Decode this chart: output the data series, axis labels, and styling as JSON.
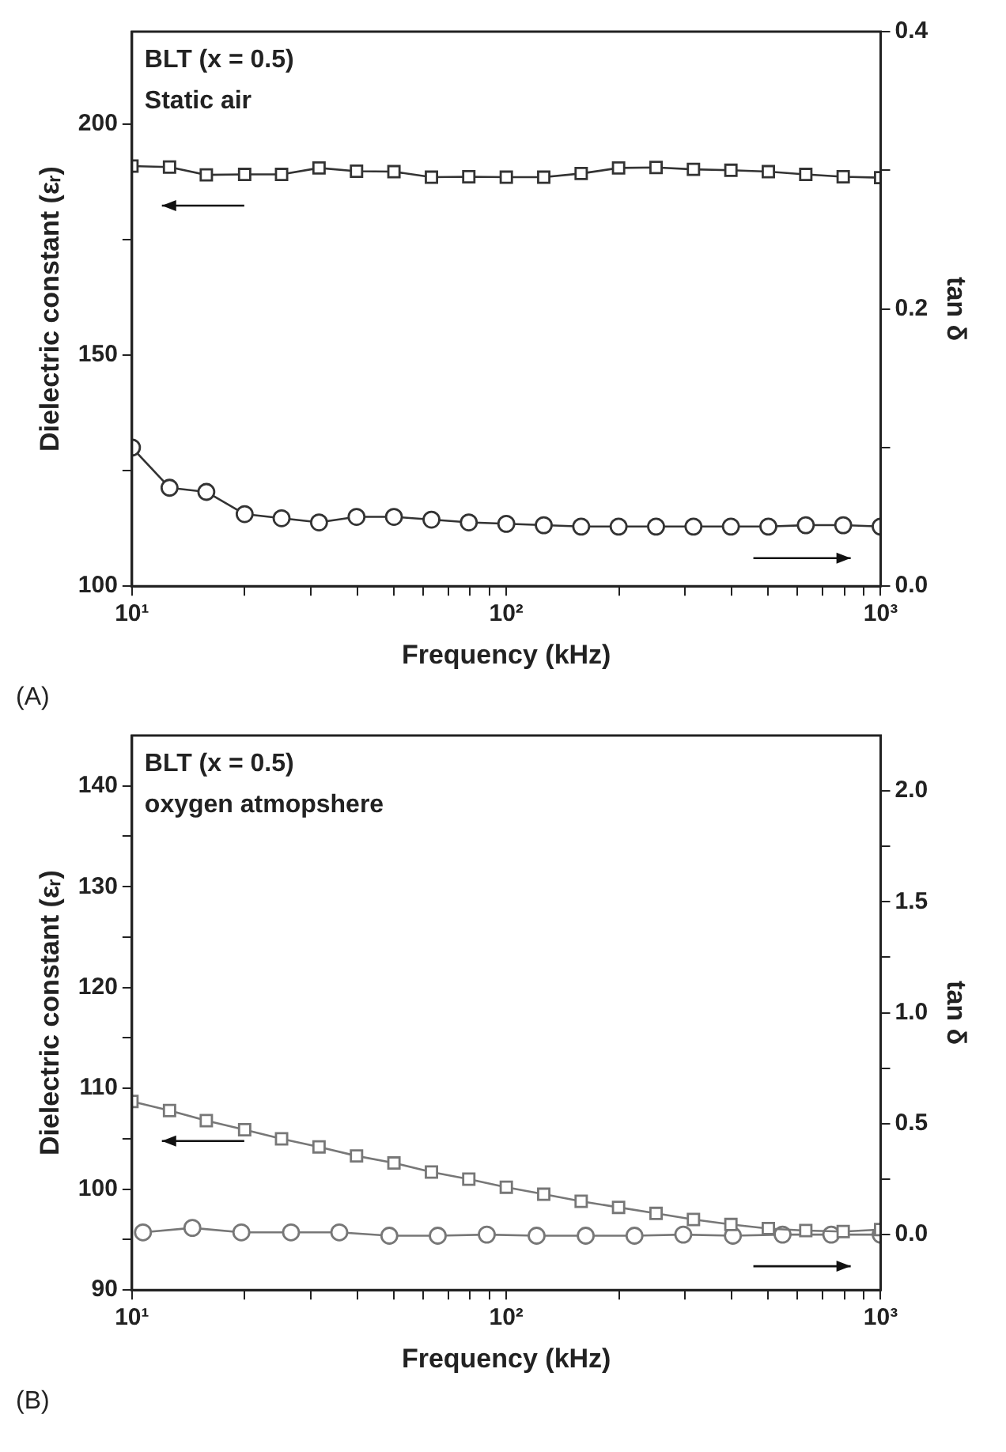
{
  "chart_data": [
    {
      "type": "line",
      "xlabel": "Frequency (kHz)",
      "ylabel": "Dielectric constant (εᵣ)",
      "y2label": "tan δ",
      "log": "x",
      "grid": false,
      "annotations": [
        "BLT (x = 0.5)",
        "Static air",
        "(A)"
      ],
      "xlim": [
        10,
        1000
      ],
      "xticks": [
        {
          "value": 10,
          "label": "10¹"
        },
        {
          "value": 20,
          "label": null
        },
        {
          "value": 30,
          "label": null
        },
        {
          "value": 40,
          "label": null
        },
        {
          "value": 50,
          "label": null
        },
        {
          "value": 60,
          "label": null
        },
        {
          "value": 70,
          "label": null
        },
        {
          "value": 80,
          "label": null
        },
        {
          "value": 90,
          "label": null
        },
        {
          "value": 100,
          "label": "10²"
        },
        {
          "value": 200,
          "label": null
        },
        {
          "value": 300,
          "label": null
        },
        {
          "value": 400,
          "label": null
        },
        {
          "value": 500,
          "label": null
        },
        {
          "value": 600,
          "label": null
        },
        {
          "value": 700,
          "label": null
        },
        {
          "value": 800,
          "label": null
        },
        {
          "value": 900,
          "label": null
        },
        {
          "value": 1000,
          "label": "10³"
        }
      ],
      "ylim": [
        100,
        220
      ],
      "yticks": [
        100,
        {
          "value": 125,
          "label": null
        },
        150,
        {
          "value": 175,
          "label": null
        },
        200
      ],
      "y2lim": [
        0,
        0.4
      ],
      "y2ticks": [
        {
          "value": 0,
          "label": "0.0"
        },
        {
          "value": 0.1,
          "label": null
        },
        0.2,
        {
          "value": 0.3,
          "label": null
        },
        0.4
      ],
      "series": [
        {
          "color": "#333333",
          "marker": "square",
          "axis": "y",
          "x": [
            10,
            12.6,
            15.8,
            20,
            25.1,
            31.6,
            39.8,
            50.1,
            63.1,
            79.4,
            100,
            125.9,
            158.5,
            199.5,
            251.2,
            316.2,
            398.1,
            501.2,
            631,
            794.3,
            1000
          ],
          "values": [
            190.9,
            190.7,
            189.0,
            189.1,
            189.1,
            190.5,
            189.8,
            189.7,
            188.5,
            188.6,
            188.5,
            188.5,
            189.3,
            190.5,
            190.6,
            190.2,
            190.0,
            189.7,
            189.1,
            188.6,
            188.4
          ]
        },
        {
          "color": "#333333",
          "marker": "circle",
          "axis": "y2",
          "x": [
            10,
            12.6,
            15.8,
            20,
            25.1,
            31.6,
            39.8,
            50.1,
            63.1,
            79.4,
            100,
            125.9,
            158.5,
            199.5,
            251.2,
            316.2,
            398.1,
            501.2,
            631,
            794.3,
            1000
          ],
          "values": [
            0.1,
            0.071,
            0.068,
            0.052,
            0.049,
            0.046,
            0.05,
            0.05,
            0.048,
            0.046,
            0.045,
            0.044,
            0.043,
            0.043,
            0.043,
            0.043,
            0.043,
            0.043,
            0.044,
            0.044,
            0.043
          ]
        }
      ]
    },
    {
      "type": "line",
      "xlabel": "Frequency (kHz)",
      "ylabel": "Dielectric constant (εᵣ)",
      "y2label": "tan δ",
      "log": "x",
      "grid": false,
      "annotations": [
        "BLT (x = 0.5)",
        "oxygen atmopshere",
        "(B)"
      ],
      "xlim": [
        10,
        1000
      ],
      "xticks": [
        {
          "value": 10,
          "label": "10¹"
        },
        {
          "value": 20,
          "label": null
        },
        {
          "value": 30,
          "label": null
        },
        {
          "value": 40,
          "label": null
        },
        {
          "value": 50,
          "label": null
        },
        {
          "value": 60,
          "label": null
        },
        {
          "value": 70,
          "label": null
        },
        {
          "value": 80,
          "label": null
        },
        {
          "value": 90,
          "label": null
        },
        {
          "value": 100,
          "label": "10²"
        },
        {
          "value": 200,
          "label": null
        },
        {
          "value": 300,
          "label": null
        },
        {
          "value": 400,
          "label": null
        },
        {
          "value": 500,
          "label": null
        },
        {
          "value": 600,
          "label": null
        },
        {
          "value": 700,
          "label": null
        },
        {
          "value": 800,
          "label": null
        },
        {
          "value": 900,
          "label": null
        },
        {
          "value": 1000,
          "label": "10³"
        }
      ],
      "ylim": [
        90,
        145
      ],
      "yticks": [
        90,
        {
          "value": 95,
          "label": null
        },
        100,
        {
          "value": 105,
          "label": null
        },
        110,
        {
          "value": 115,
          "label": null
        },
        120,
        {
          "value": 125,
          "label": null
        },
        130,
        {
          "value": 135,
          "label": null
        },
        140
      ],
      "y2lim": [
        -0.25,
        2.25
      ],
      "y2ticks": [
        {
          "value": 0,
          "label": "0.0"
        },
        {
          "value": 0.25,
          "label": null
        },
        0.5,
        {
          "value": 0.75,
          "label": null
        },
        {
          "value": 1,
          "label": "1.0"
        },
        {
          "value": 1.25,
          "label": null
        },
        1.5,
        {
          "value": 1.75,
          "label": null
        },
        {
          "value": 2,
          "label": "2.0"
        }
      ],
      "series": [
        {
          "color": "#777777",
          "marker": "square",
          "axis": "y",
          "x": [
            10,
            12.6,
            15.8,
            20,
            25.1,
            31.6,
            39.8,
            50.1,
            63.1,
            79.4,
            100,
            125.9,
            158.5,
            199.5,
            251.2,
            316.2,
            398.1,
            501.2,
            631,
            794.3,
            1000
          ],
          "values": [
            108.7,
            107.8,
            106.8,
            105.9,
            105.0,
            104.2,
            103.3,
            102.6,
            101.7,
            101.0,
            100.2,
            99.5,
            98.8,
            98.2,
            97.6,
            97.0,
            96.5,
            96.1,
            95.9,
            95.8,
            96.0
          ]
        },
        {
          "color": "#777777",
          "marker": "circle",
          "axis": "y2",
          "x": [
            10.7,
            14.5,
            19.6,
            26.6,
            35.8,
            48.7,
            65.6,
            88.7,
            120.5,
            163,
            220,
            297,
            403,
            547,
            738,
            1000
          ],
          "values": [
            0.01,
            0.03,
            0.01,
            0.01,
            0.01,
            -0.005,
            -0.005,
            0.0,
            -0.005,
            -0.005,
            -0.005,
            0.0,
            -0.005,
            0.0,
            0.0,
            0.0
          ]
        }
      ]
    }
  ]
}
